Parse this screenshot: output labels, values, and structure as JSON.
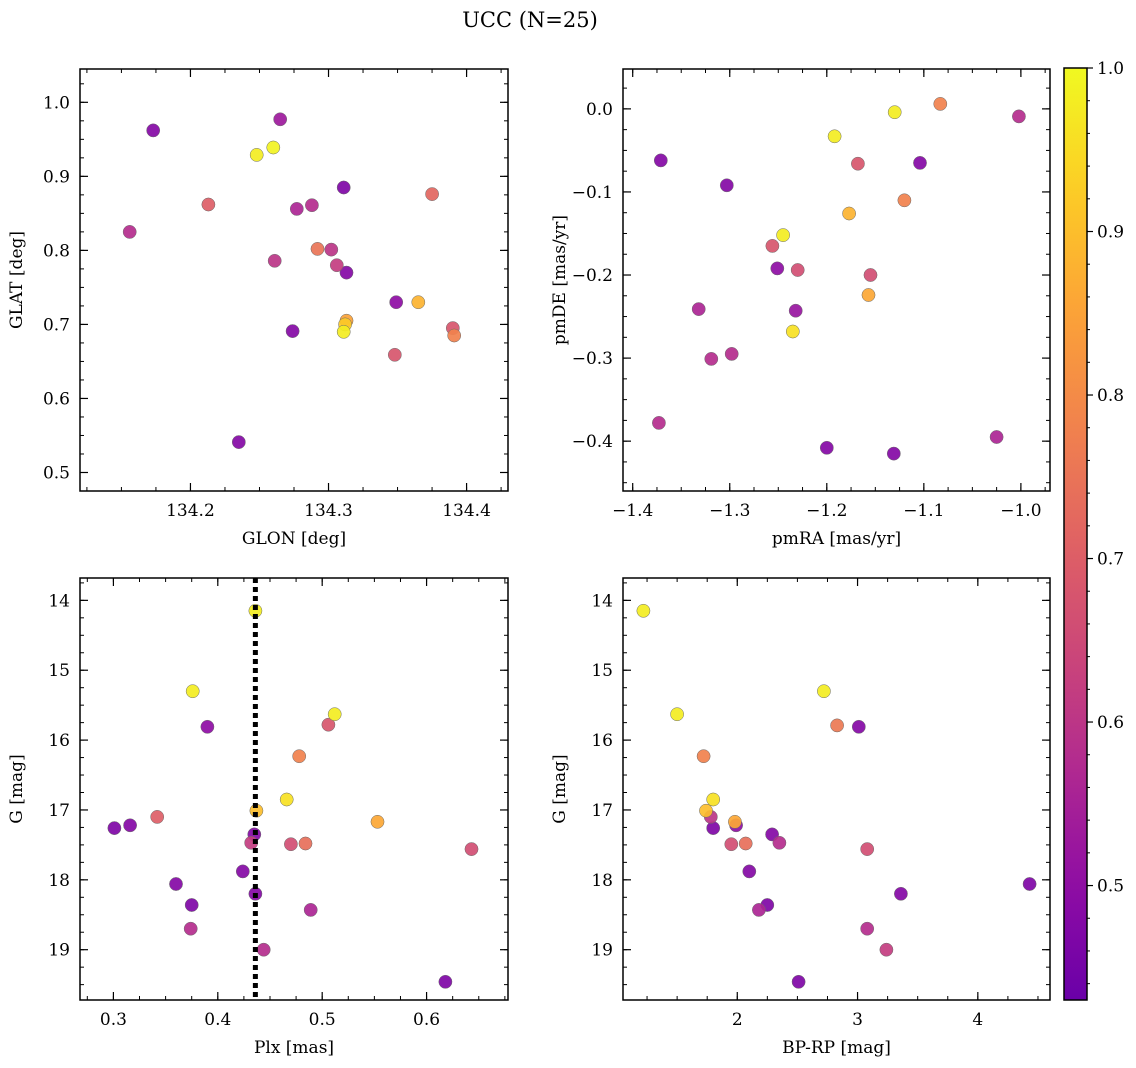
{
  "figure": {
    "title": "UCC (N=25)"
  },
  "colorbar": {
    "min": 0.43,
    "max": 1.0,
    "ticks": [
      "0.5",
      "0.6",
      "0.7",
      "0.8",
      "0.9",
      "1.0"
    ],
    "tick_values": [
      0.5,
      0.6,
      0.7,
      0.8,
      0.9,
      1.0
    ]
  },
  "chart_data": [
    {
      "type": "scatter",
      "id": "pos",
      "title": "",
      "xlabel": "GLON [deg]",
      "ylabel": "GLAT [deg]",
      "xlim": [
        134.12,
        134.43
      ],
      "ylim": [
        0.475,
        1.045
      ],
      "yinvert": false,
      "xticks": [
        134.2,
        134.3,
        134.4
      ],
      "xtick_labels": [
        "134.2",
        "134.3",
        "134.4"
      ],
      "yticks": [
        0.5,
        0.6,
        0.7,
        0.8,
        0.9,
        1.0
      ],
      "ytick_labels": [
        "0.5",
        "0.6",
        "0.7",
        "0.8",
        "0.9",
        "1.0"
      ],
      "x": [
        134.173,
        134.265,
        134.156,
        134.248,
        134.26,
        134.213,
        134.311,
        134.288,
        134.277,
        134.292,
        134.302,
        134.306,
        134.313,
        134.261,
        134.375,
        134.349,
        134.365,
        134.313,
        134.274,
        134.311,
        134.39,
        134.391,
        134.348,
        134.235,
        134.312
      ],
      "y": [
        0.962,
        0.977,
        0.825,
        0.929,
        0.939,
        0.862,
        0.885,
        0.861,
        0.856,
        0.802,
        0.801,
        0.78,
        0.77,
        0.786,
        0.876,
        0.73,
        0.73,
        0.705,
        0.691,
        0.69,
        0.695,
        0.685,
        0.659,
        0.541,
        0.7
      ],
      "c": [
        0.48,
        0.53,
        0.58,
        0.98,
        0.99,
        0.7,
        0.47,
        0.58,
        0.56,
        0.75,
        0.6,
        0.62,
        0.48,
        0.6,
        0.72,
        0.5,
        0.88,
        0.85,
        0.48,
        0.98,
        0.68,
        0.78,
        0.68,
        0.48,
        0.92
      ]
    },
    {
      "type": "scatter",
      "id": "pm",
      "title": "",
      "xlabel": "pmRA [mas/yr]",
      "ylabel": "pmDE [mas/yr]",
      "xlim": [
        -1.41,
        -0.97
      ],
      "ylim": [
        -0.46,
        0.048
      ],
      "yinvert": false,
      "xticks": [
        -1.4,
        -1.3,
        -1.2,
        -1.1,
        -1.0
      ],
      "xtick_labels": [
        "−1.4",
        "−1.3",
        "−1.2",
        "−1.1",
        "−1.0"
      ],
      "yticks": [
        -0.4,
        -0.3,
        -0.2,
        -0.1,
        0.0
      ],
      "ytick_labels": [
        "−0.4",
        "−0.3",
        "−0.2",
        "−0.1",
        "0.0"
      ],
      "x": [
        -1.371,
        -1.303,
        -1.13,
        -1.083,
        -1.002,
        -1.192,
        -1.104,
        -1.168,
        -1.177,
        -1.12,
        -1.245,
        -1.256,
        -1.251,
        -1.23,
        -1.155,
        -1.157,
        -1.235,
        -1.232,
        -1.332,
        -1.319,
        -1.298,
        -1.373,
        -1.2,
        -1.131,
        -1.025
      ],
      "y": [
        -0.062,
        -0.092,
        -0.004,
        0.006,
        -0.009,
        -0.033,
        -0.065,
        -0.066,
        -0.126,
        -0.11,
        -0.152,
        -0.165,
        -0.192,
        -0.194,
        -0.2,
        -0.224,
        -0.268,
        -0.243,
        -0.241,
        -0.301,
        -0.295,
        -0.378,
        -0.408,
        -0.415,
        -0.395
      ],
      "c": [
        0.48,
        0.48,
        0.98,
        0.78,
        0.58,
        0.98,
        0.48,
        0.68,
        0.88,
        0.78,
        0.98,
        0.68,
        0.5,
        0.66,
        0.66,
        0.86,
        0.96,
        0.52,
        0.56,
        0.58,
        0.58,
        0.58,
        0.48,
        0.48,
        0.56
      ]
    },
    {
      "type": "scatter",
      "id": "cmd_plx",
      "title": "",
      "xlabel": "Plx [mas]",
      "ylabel": "G [mag]",
      "xlim": [
        0.268,
        0.678
      ],
      "ylim": [
        19.72,
        13.68
      ],
      "yinvert": true,
      "vline": 0.436,
      "xticks": [
        0.3,
        0.4,
        0.5,
        0.6
      ],
      "xtick_labels": [
        "0.3",
        "0.4",
        "0.5",
        "0.6"
      ],
      "yticks": [
        14,
        15,
        16,
        17,
        18,
        19
      ],
      "ytick_labels": [
        "14",
        "15",
        "16",
        "17",
        "18",
        "19"
      ],
      "x": [
        0.436,
        0.376,
        0.512,
        0.39,
        0.506,
        0.478,
        0.466,
        0.437,
        0.553,
        0.301,
        0.316,
        0.342,
        0.435,
        0.432,
        0.47,
        0.484,
        0.643,
        0.36,
        0.424,
        0.375,
        0.489,
        0.374,
        0.436,
        0.444,
        0.618
      ],
      "y": [
        14.15,
        15.3,
        15.63,
        15.81,
        15.78,
        16.23,
        16.85,
        17.01,
        17.17,
        17.26,
        17.22,
        17.1,
        17.35,
        17.47,
        17.49,
        17.48,
        17.56,
        18.06,
        17.88,
        18.36,
        18.43,
        18.7,
        18.2,
        19.0,
        19.46
      ],
      "c": [
        0.98,
        0.98,
        0.98,
        0.5,
        0.68,
        0.78,
        0.96,
        0.9,
        0.86,
        0.47,
        0.48,
        0.7,
        0.48,
        0.62,
        0.66,
        0.74,
        0.66,
        0.48,
        0.48,
        0.47,
        0.56,
        0.58,
        0.48,
        0.58,
        0.47
      ]
    },
    {
      "type": "scatter",
      "id": "cmd_color",
      "title": "",
      "xlabel": "BP-RP [mag]",
      "ylabel": "G [mag]",
      "xlim": [
        1.05,
        4.6
      ],
      "ylim": [
        19.72,
        13.68
      ],
      "yinvert": true,
      "xticks": [
        2,
        3,
        4
      ],
      "xtick_labels": [
        "2",
        "3",
        "4"
      ],
      "yticks": [
        14,
        15,
        16,
        17,
        18,
        19
      ],
      "ytick_labels": [
        "14",
        "15",
        "16",
        "17",
        "18",
        "19"
      ],
      "x": [
        1.22,
        2.72,
        1.5,
        2.83,
        3.01,
        1.72,
        1.8,
        1.74,
        1.98,
        1.8,
        1.99,
        1.78,
        2.29,
        2.07,
        1.95,
        2.35,
        3.08,
        3.36,
        2.1,
        2.25,
        2.18,
        3.08,
        3.24,
        4.43,
        2.51
      ],
      "y": [
        14.15,
        15.3,
        15.63,
        15.79,
        15.81,
        16.23,
        16.85,
        17.01,
        17.17,
        17.26,
        17.22,
        17.1,
        17.35,
        17.48,
        17.49,
        17.47,
        17.56,
        18.2,
        17.88,
        18.36,
        18.43,
        18.7,
        19.0,
        18.06,
        19.46
      ],
      "c": [
        0.98,
        0.98,
        0.98,
        0.76,
        0.48,
        0.78,
        0.96,
        0.9,
        0.86,
        0.47,
        0.5,
        0.6,
        0.48,
        0.74,
        0.66,
        0.58,
        0.66,
        0.48,
        0.48,
        0.47,
        0.56,
        0.58,
        0.62,
        0.47,
        0.47
      ]
    }
  ]
}
